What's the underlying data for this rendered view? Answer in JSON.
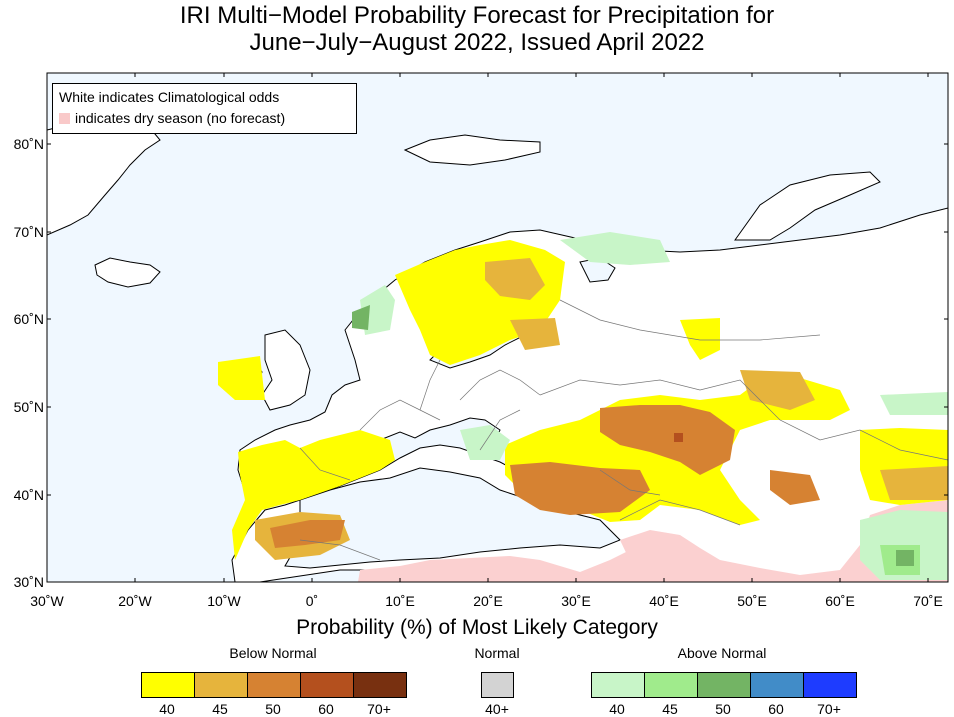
{
  "title_line1": "IRI Multi−Model Probability Forecast for Precipitation for",
  "title_line2": "June−July−August 2022, Issued April 2022",
  "legend": {
    "line1": "White indicates Climatological odds",
    "line2": "indicates dry season (no forecast)"
  },
  "lat_labels": [
    "80˚N",
    "70˚N",
    "60˚N",
    "50˚N",
    "40˚N",
    "30˚N"
  ],
  "lon_labels": [
    "30˚W",
    "20˚W",
    "10˚W",
    "0˚",
    "10˚E",
    "20˚E",
    "30˚E",
    "40˚E",
    "50˚E",
    "60˚E",
    "70˚E"
  ],
  "colorbar_title": "Probability (%) of Most Likely Category",
  "colorbar": {
    "below": {
      "label": "Below Normal",
      "colors": [
        "#ffff00",
        "#e6b43c",
        "#d68232",
        "#b4501e",
        "#783010"
      ],
      "ticks": [
        "40",
        "45",
        "50",
        "60",
        "70+"
      ]
    },
    "normal": {
      "label": "Normal",
      "colors": [
        "#d3d3d3"
      ],
      "ticks": [
        "40+"
      ]
    },
    "above": {
      "label": "Above Normal",
      "colors": [
        "#c8f5c8",
        "#a0eb8c",
        "#73b464",
        "#418cc8",
        "#1e3cff"
      ],
      "ticks": [
        "40",
        "45",
        "50",
        "60",
        "70+"
      ]
    }
  },
  "colors": {
    "ocean": "#f0f8ff",
    "land": "#ffffff",
    "dry_season": "#fbd0d0"
  }
}
